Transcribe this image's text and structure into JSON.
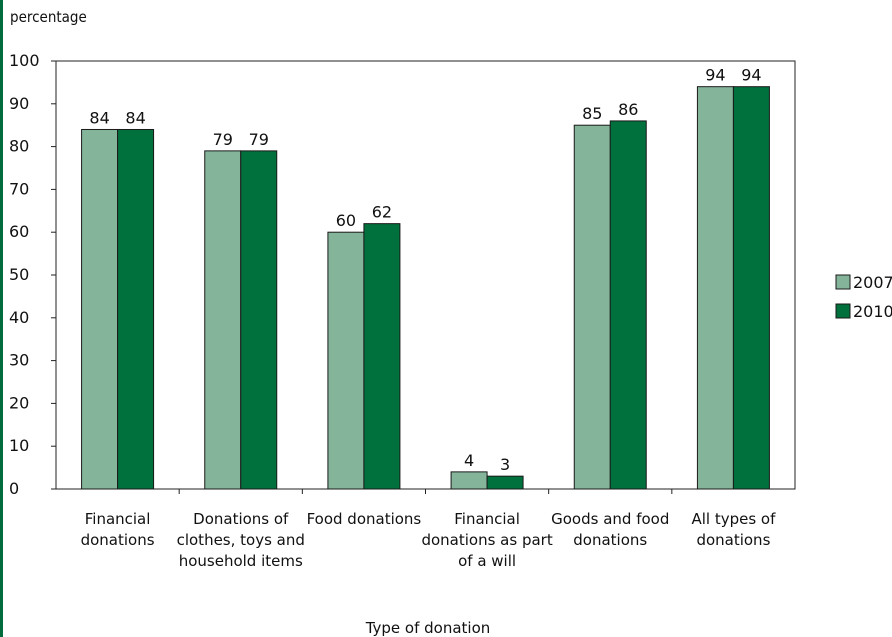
{
  "chart_data": {
    "type": "bar",
    "ylabel": "percentage",
    "xlabel": "Type of donation",
    "ylim": [
      0,
      100
    ],
    "yticks": [
      0,
      10,
      20,
      30,
      40,
      50,
      60,
      70,
      80,
      90,
      100
    ],
    "grid": false,
    "legend_position": "right",
    "categories": [
      [
        "Financial",
        "donations"
      ],
      [
        "Donations of",
        "clothes, toys and",
        "household items"
      ],
      [
        "Food donations"
      ],
      [
        "Financial",
        "donations as part",
        "of a will"
      ],
      [
        "Goods and food",
        "donations"
      ],
      [
        "All types of",
        "donations"
      ]
    ],
    "series": [
      {
        "name": "2007",
        "color": "#84b59b",
        "values": [
          84,
          79,
          60,
          4,
          85,
          94
        ]
      },
      {
        "name": "2010",
        "color": "#00703c",
        "values": [
          84,
          79,
          62,
          3,
          86,
          94
        ]
      }
    ]
  }
}
